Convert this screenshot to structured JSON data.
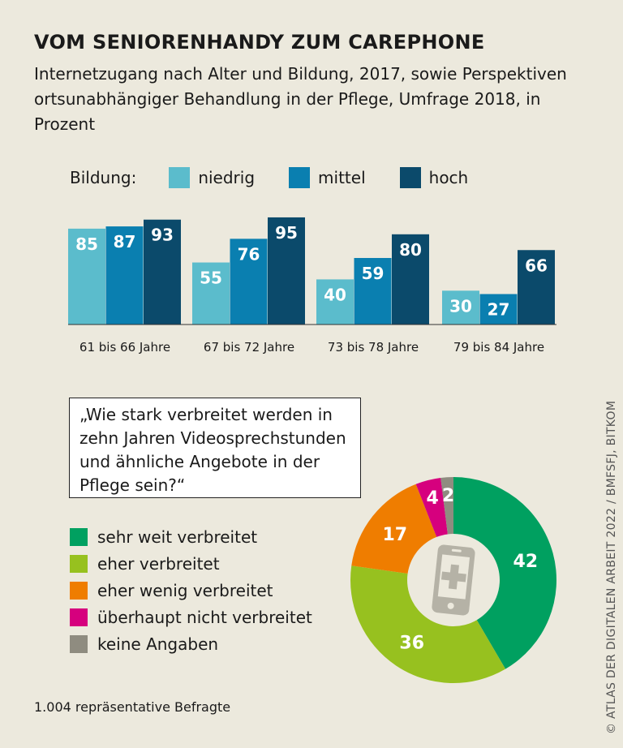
{
  "title": "VOM SENIORENHANDY ZUM CAREPHONE",
  "subtitle": "Internetzugang nach Alter und Bildung, 2017, sowie Perspektiven ortsunabhängiger Behandlung in der Pflege, Umfrage 2018, in Prozent",
  "chart_data": [
    {
      "type": "bar",
      "legend_title": "Bildung:",
      "categories": [
        "61 bis 66 Jahre",
        "67 bis 72 Jahre",
        "73 bis 78 Jahre",
        "79 bis 84 Jahre"
      ],
      "series": [
        {
          "name": "niedrig",
          "color": "#5bbccc",
          "values": [
            85,
            55,
            40,
            30
          ]
        },
        {
          "name": "mittel",
          "color": "#0a7fb0",
          "values": [
            87,
            76,
            59,
            27
          ]
        },
        {
          "name": "hoch",
          "color": "#0b4a6b",
          "values": [
            93,
            95,
            80,
            66
          ]
        }
      ],
      "ylim": [
        0,
        100
      ],
      "grid": false,
      "legend_position": "top"
    },
    {
      "type": "pie",
      "donut": true,
      "question": "„Wie stark verbreitet werden in zehn Jahren Videosprech­stunden und ähnliche Angebote in der Pflege sein?“",
      "labels": [
        "sehr weit verbreitet",
        "eher verbreitet",
        "eher wenig verbreitet",
        "überhaupt nicht verbreitet",
        "keine Angaben"
      ],
      "values": [
        42,
        36,
        17,
        4,
        2
      ],
      "colors": [
        "#00a060",
        "#97c11f",
        "#ef7d00",
        "#d6007e",
        "#8f8c80"
      ],
      "center_icon": "smartphone-plus-icon"
    }
  ],
  "note": "1.004 repräsentative Befragte",
  "credit": "© ATLAS DER DIGITALEN ARBEIT 2022 / BMFSFJ, BITKOM"
}
